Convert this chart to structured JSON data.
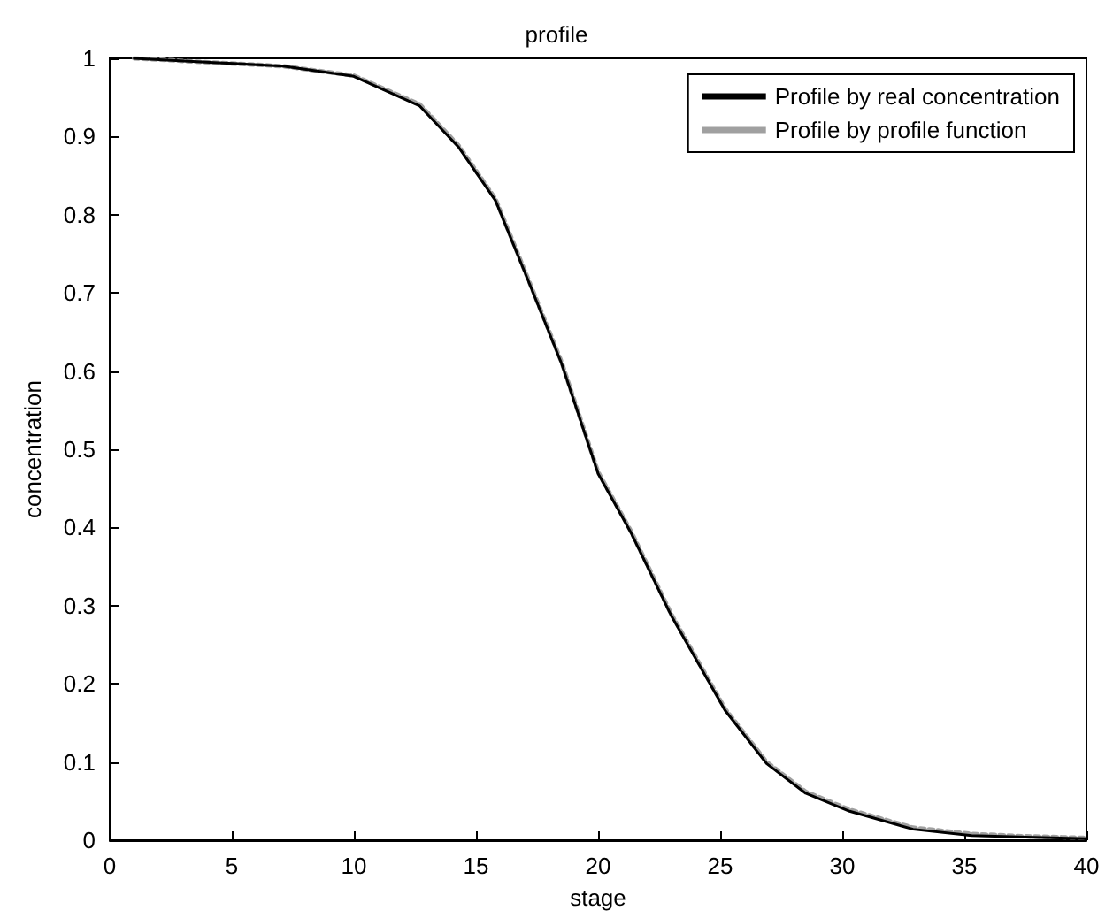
{
  "chart_data": {
    "type": "line",
    "title": "profile",
    "xlabel": "stage",
    "ylabel": "concentration",
    "xlim": [
      0,
      40
    ],
    "xticks": [
      0,
      5,
      10,
      15,
      20,
      25,
      30,
      35,
      40
    ],
    "ylim": [
      0,
      1
    ],
    "yticks": [
      0,
      0.1,
      0.2,
      0.3,
      0.4,
      0.5,
      0.6,
      0.7,
      0.8,
      0.9,
      1
    ],
    "grid": false,
    "legend": "top right",
    "marker": "none",
    "series": [
      {
        "name": "Profile by real concentration",
        "color": "#000000",
        "line_style": "solid",
        "x": [
          1,
          7.1,
          10,
          12.7,
          14.3,
          15.8,
          17.2,
          18.5,
          20,
          21.35,
          23,
          25.2,
          26.9,
          28.5,
          30.3,
          32.9,
          35.3,
          37.5,
          40
        ],
        "values": [
          1,
          0.99,
          0.977,
          0.939,
          0.886,
          0.818,
          0.711,
          0.61,
          0.469,
          0.393,
          0.287,
          0.166,
          0.098,
          0.06,
          0.037,
          0.014,
          0.006,
          0.004,
          0.002
        ]
      },
      {
        "name": "Profile by profile function",
        "color": "#a0a0a0",
        "line_style": "dotted",
        "x": [
          1,
          7.1,
          10,
          12.7,
          14.3,
          15.8,
          17.2,
          18.5,
          20,
          21.35,
          23,
          25.2,
          26.9,
          28.5,
          30.3,
          32.9,
          35.3,
          37.5,
          40
        ],
        "values": [
          1,
          0.99,
          0.978,
          0.941,
          0.888,
          0.82,
          0.713,
          0.612,
          0.471,
          0.395,
          0.289,
          0.168,
          0.1,
          0.062,
          0.039,
          0.016,
          0.008,
          0.005,
          0.003
        ]
      }
    ]
  }
}
